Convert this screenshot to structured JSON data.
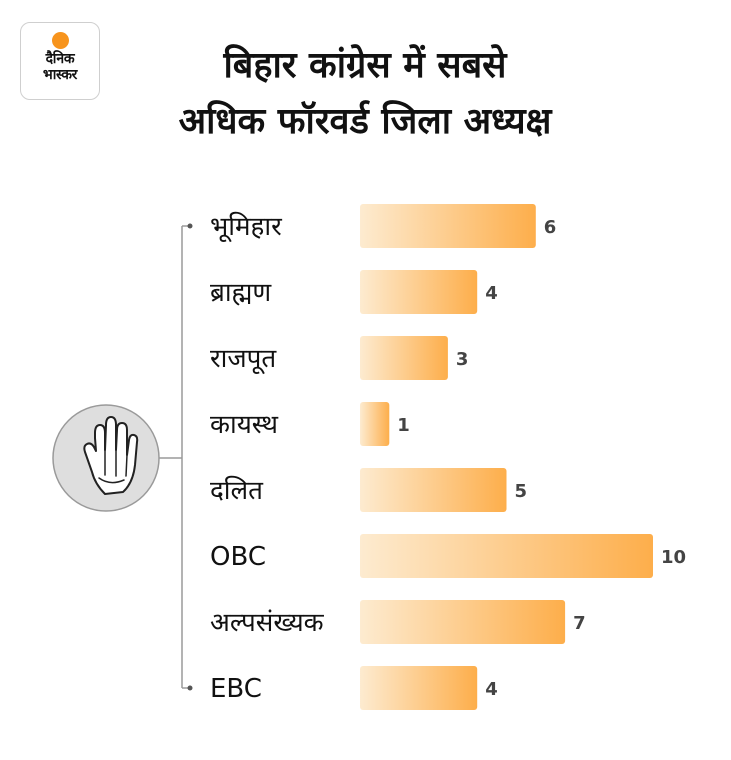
{
  "logo": {
    "line1": "दैनिक",
    "line2": "भास्कर",
    "sun_color": "#f7941d"
  },
  "title": {
    "line1": "बिहार कांग्रेस में सबसे",
    "line2": "अधिक फॉरवर्ड जिला अध्यक्ष"
  },
  "emblem": {
    "icon": "congress-hand-icon"
  },
  "colors": {
    "bar_start": "#fdebd0",
    "bar_end": "#fdae4b",
    "connector": "#9a9a9a",
    "emblem_bg": "#dedede"
  },
  "chart_data": {
    "type": "bar",
    "orientation": "horizontal",
    "title": "बिहार कांग्रेस में सबसे अधिक फॉरवर्ड जिला अध्यक्ष",
    "categories": [
      "भूमिहार",
      "ब्राह्मण",
      "राजपूत",
      "कायस्थ",
      "दलित",
      "OBC",
      "अल्पसंख्यक",
      "EBC"
    ],
    "values": [
      6,
      4,
      3,
      1,
      5,
      10,
      7,
      4
    ],
    "xlim": [
      0,
      10
    ],
    "grid": false,
    "legend": "none"
  }
}
